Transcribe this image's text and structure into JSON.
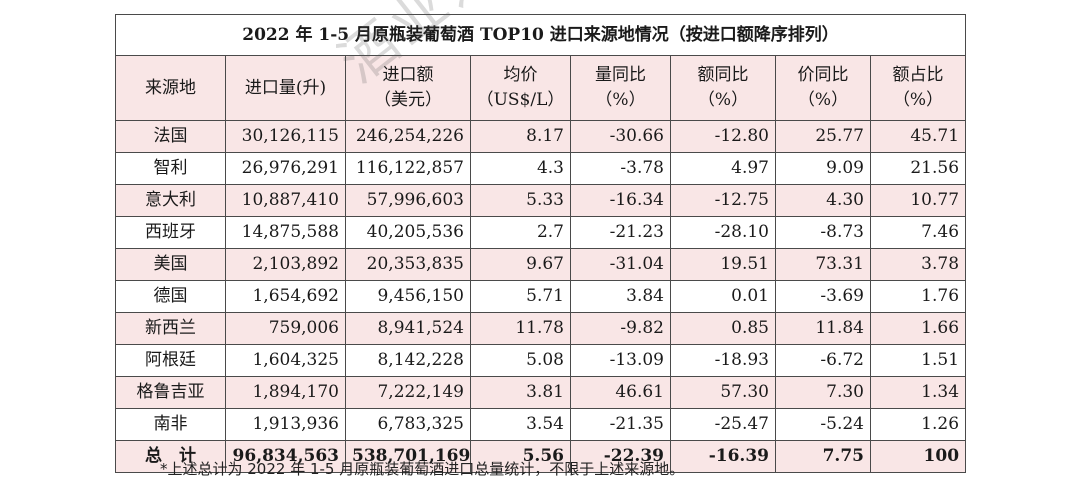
{
  "title": "2022 年 1-5 月原瓶装葡萄酒 TOP10 进口来源地情况（按进口额降序排列）",
  "headers": [
    {
      "l1": "来源地",
      "l2": ""
    },
    {
      "l1": "进口量(升)",
      "l2": ""
    },
    {
      "l1": "进口额",
      "l2": "（美元）"
    },
    {
      "l1": "均价",
      "l2": "（US$/L）"
    },
    {
      "l1": "量同比",
      "l2": "（%）"
    },
    {
      "l1": "额同比",
      "l2": "（%）"
    },
    {
      "l1": "价同比",
      "l2": "（%）"
    },
    {
      "l1": "额占比",
      "l2": "（%）"
    }
  ],
  "rows": [
    [
      "法国",
      "30,126,115",
      "246,254,226",
      "8.17",
      "-30.66",
      "-12.80",
      "25.77",
      "45.71"
    ],
    [
      "智利",
      "26,976,291",
      "116,122,857",
      "4.3",
      "-3.78",
      "4.97",
      "9.09",
      "21.56"
    ],
    [
      "意大利",
      "10,887,410",
      "57,996,603",
      "5.33",
      "-16.34",
      "-12.75",
      "4.30",
      "10.77"
    ],
    [
      "西班牙",
      "14,875,588",
      "40,205,536",
      "2.7",
      "-21.23",
      "-28.10",
      "-8.73",
      "7.46"
    ],
    [
      "美国",
      "2,103,892",
      "20,353,835",
      "9.67",
      "-31.04",
      "19.51",
      "73.31",
      "3.78"
    ],
    [
      "德国",
      "1,654,692",
      "9,456,150",
      "5.71",
      "3.84",
      "0.01",
      "-3.69",
      "1.76"
    ],
    [
      "新西兰",
      "759,006",
      "8,941,524",
      "11.78",
      "-9.82",
      "0.85",
      "11.84",
      "1.66"
    ],
    [
      "阿根廷",
      "1,604,325",
      "8,142,228",
      "5.08",
      "-13.09",
      "-18.93",
      "-6.72",
      "1.51"
    ],
    [
      "格鲁吉亚",
      "1,894,170",
      "7,222,149",
      "3.81",
      "46.61",
      "57.30",
      "7.30",
      "1.34"
    ],
    [
      "南非",
      "1,913,936",
      "6,783,325",
      "3.54",
      "-21.35",
      "-25.47",
      "-5.24",
      "1.26"
    ]
  ],
  "total": [
    "总　计",
    "96,834,563",
    "538,701,169",
    "5.56",
    "-22.39",
    "-16.39",
    "7.75",
    "100"
  ],
  "note": "*上述总计为 2022 年 1-5 月原瓶装葡萄酒进口总量统计，不限于上述来源地。",
  "watermark": "酒业进口"
}
